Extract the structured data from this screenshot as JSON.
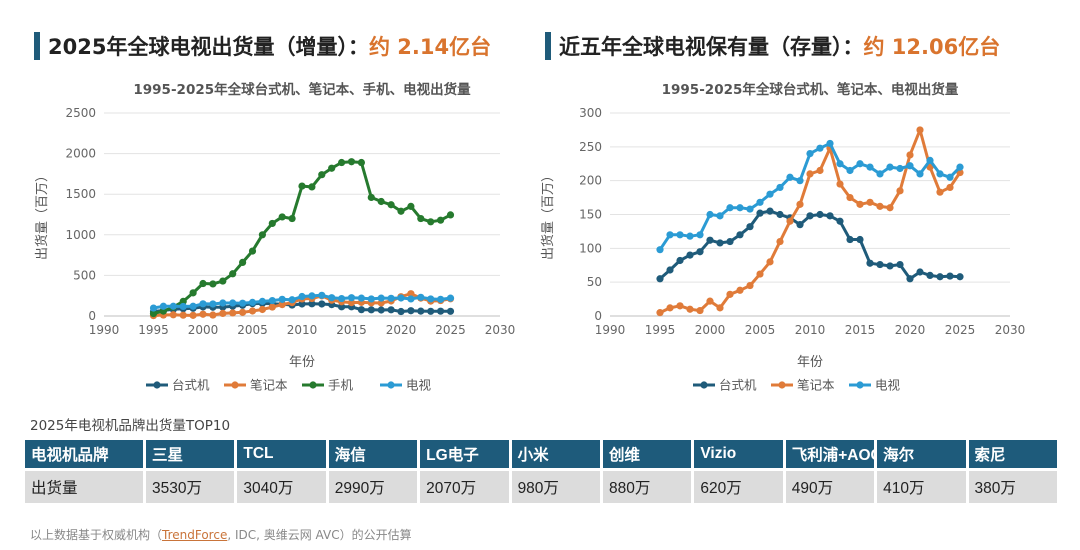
{
  "headline_left": {
    "text": "2025年全球电视出货量（增量）：",
    "highlight": "约 2.14亿台"
  },
  "headline_right": {
    "text": "近五年全球电视保有量（存量）：",
    "highlight": "约 12.06亿台"
  },
  "colors": {
    "desktop": "#1f5b7a",
    "laptop": "#e07b39",
    "phone": "#267a2e",
    "tv": "#2b9bd4",
    "headline_accent": "#d9742e",
    "table_header": "#1e5b7b"
  },
  "chart_data": [
    {
      "type": "line",
      "title": "1995-2025年全球台式机、笔记本、手机、电视出货量",
      "xlabel": "年份",
      "ylabel": "出货量（百万）",
      "xlim": [
        1990,
        2030
      ],
      "ylim": [
        0,
        2500
      ],
      "xticks": [
        1990,
        1995,
        2000,
        2005,
        2010,
        2015,
        2020,
        2025,
        2030
      ],
      "yticks": [
        0,
        500,
        1000,
        1500,
        2000,
        2500
      ],
      "grid": true,
      "legend_position": "bottom",
      "x": [
        1995,
        1996,
        1997,
        1998,
        1999,
        2000,
        2001,
        2002,
        2003,
        2004,
        2005,
        2006,
        2007,
        2008,
        2009,
        2010,
        2011,
        2012,
        2013,
        2014,
        2015,
        2016,
        2017,
        2018,
        2019,
        2020,
        2021,
        2022,
        2023,
        2024,
        2025
      ],
      "series": [
        {
          "name": "台式机",
          "color": "#1f5b7a",
          "values": [
            55,
            68,
            82,
            90,
            95,
            112,
            108,
            110,
            120,
            132,
            152,
            155,
            150,
            145,
            135,
            148,
            150,
            148,
            140,
            113,
            113,
            78,
            76,
            74,
            76,
            55,
            65,
            60,
            58,
            59,
            58
          ]
        },
        {
          "name": "笔记本",
          "color": "#e07b39",
          "values": [
            5,
            12,
            15,
            10,
            8,
            22,
            12,
            32,
            38,
            45,
            62,
            80,
            110,
            140,
            165,
            210,
            215,
            248,
            195,
            175,
            165,
            168,
            162,
            160,
            185,
            238,
            275,
            220,
            183,
            190,
            212
          ]
        },
        {
          "name": "手机",
          "color": "#267a2e",
          "values": [
            30,
            60,
            110,
            180,
            285,
            400,
            395,
            430,
            520,
            660,
            800,
            1000,
            1140,
            1220,
            1200,
            1600,
            1590,
            1740,
            1820,
            1890,
            1900,
            1890,
            1460,
            1410,
            1370,
            1290,
            1350,
            1200,
            1160,
            1180,
            1245
          ]
        },
        {
          "name": "电视",
          "color": "#2b9bd4",
          "values": [
            98,
            120,
            120,
            118,
            120,
            150,
            148,
            160,
            160,
            158,
            168,
            180,
            190,
            205,
            200,
            240,
            248,
            255,
            225,
            215,
            225,
            220,
            210,
            220,
            218,
            222,
            210,
            230,
            210,
            205,
            220
          ]
        }
      ]
    },
    {
      "type": "line",
      "title": "1995-2025年全球台式机、笔记本、电视出货量",
      "xlabel": "年份",
      "ylabel": "出货量（百万）",
      "xlim": [
        1990,
        2030
      ],
      "ylim": [
        0,
        300
      ],
      "xticks": [
        1990,
        1995,
        2000,
        2005,
        2010,
        2015,
        2020,
        2025,
        2030
      ],
      "yticks": [
        0,
        50,
        100,
        150,
        200,
        250,
        300
      ],
      "grid": true,
      "legend_position": "bottom",
      "x": [
        1995,
        1996,
        1997,
        1998,
        1999,
        2000,
        2001,
        2002,
        2003,
        2004,
        2005,
        2006,
        2007,
        2008,
        2009,
        2010,
        2011,
        2012,
        2013,
        2014,
        2015,
        2016,
        2017,
        2018,
        2019,
        2020,
        2021,
        2022,
        2023,
        2024,
        2025
      ],
      "series": [
        {
          "name": "台式机",
          "color": "#1f5b7a",
          "values": [
            55,
            68,
            82,
            90,
            95,
            112,
            108,
            110,
            120,
            132,
            152,
            155,
            150,
            145,
            135,
            148,
            150,
            148,
            140,
            113,
            113,
            78,
            76,
            74,
            76,
            55,
            65,
            60,
            58,
            59,
            58
          ]
        },
        {
          "name": "笔记本",
          "color": "#e07b39",
          "values": [
            5,
            12,
            15,
            10,
            8,
            22,
            12,
            32,
            38,
            45,
            62,
            80,
            110,
            140,
            165,
            210,
            215,
            248,
            195,
            175,
            165,
            168,
            162,
            160,
            185,
            238,
            275,
            220,
            183,
            190,
            212
          ]
        },
        {
          "name": "电视",
          "color": "#2b9bd4",
          "values": [
            98,
            120,
            120,
            118,
            120,
            150,
            148,
            160,
            160,
            158,
            168,
            180,
            190,
            205,
            200,
            240,
            248,
            255,
            225,
            215,
            225,
            220,
            210,
            220,
            218,
            222,
            210,
            230,
            210,
            205,
            220
          ]
        }
      ]
    },
    {
      "type": "table",
      "title": "2025年电视机品牌出货量TOP10",
      "header_label": "电视机品牌",
      "row_label": "出货量",
      "brands": [
        "三星",
        "TCL",
        "海信",
        "LG电子",
        "小米",
        "创维",
        "Vizio",
        "飞利浦+AOC",
        "海尔",
        "索尼"
      ],
      "shipments": [
        "3530万",
        "3040万",
        "2990万",
        "2070万",
        "980万",
        "880万",
        "620万",
        "490万",
        "410万",
        "380万"
      ]
    }
  ],
  "footnote": {
    "before": "以上数据基于权威机构（",
    "source": "TrendForce",
    "after": ", IDC, 奥维云网 AVC）的公开估算"
  }
}
